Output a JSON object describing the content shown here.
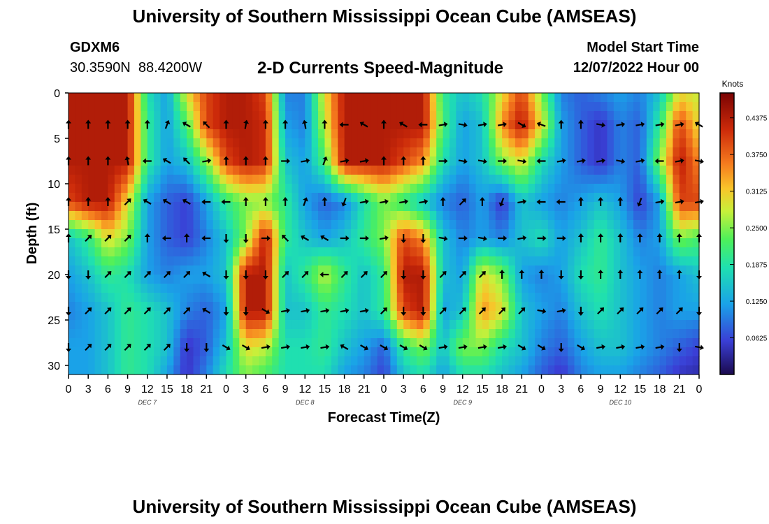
{
  "header": {
    "title": "University of Southern Mississippi Ocean Cube (AMSEAS)",
    "station_id": "GDXM6",
    "station_coords": "30.3590N  88.4200W",
    "product_title": "2-D Currents Speed-Magnitude",
    "model_start_label": "Model Start Time",
    "model_start_value": "12/07/2022 Hour 00"
  },
  "footer": {
    "title": "University of Southern Mississippi Ocean Cube (AMSEAS)"
  },
  "colors": {
    "low": "#2a0f6b",
    "mid": "#29e07c",
    "high": "#8b0000"
  },
  "chart_data": {
    "type": "heatmap",
    "title": "2-D Currents Speed-Magnitude",
    "xlabel": "Forecast Time(Z)",
    "ylabel": "Depth (ft)",
    "x_tick_labels": [
      "0",
      "3",
      "6",
      "9",
      "12",
      "15",
      "18",
      "21",
      "0",
      "3",
      "6",
      "9",
      "12",
      "15",
      "18",
      "21",
      "0",
      "3",
      "6",
      "9",
      "12",
      "15",
      "18",
      "21",
      "0",
      "3",
      "6",
      "9",
      "12",
      "15",
      "18",
      "21",
      "0"
    ],
    "y_ticks": [
      0,
      5,
      10,
      15,
      20,
      25,
      30
    ],
    "ylim": [
      0,
      31
    ],
    "x_hours_range": [
      0,
      96
    ],
    "day_labels": [
      {
        "text": "DEC 7",
        "hour": 12
      },
      {
        "text": "DEC 8",
        "hour": 36
      },
      {
        "text": "DEC 9",
        "hour": 60
      },
      {
        "text": "DEC 10",
        "hour": 84
      }
    ],
    "colorbar": {
      "label": "Knots",
      "ticks": [
        "0.4375",
        "0.3750",
        "0.3125",
        "0.2500",
        "0.1875",
        "0.1250",
        "0.0625"
      ],
      "range": [
        0.0,
        0.48
      ]
    },
    "hours": [
      0,
      3,
      6,
      9,
      12,
      15,
      18,
      21,
      24,
      27,
      30,
      33,
      36,
      39,
      42,
      45,
      48,
      51,
      54,
      57,
      60,
      63,
      66,
      69,
      72,
      75,
      78,
      81,
      84,
      87,
      90,
      93,
      96
    ],
    "depths": [
      0,
      3.5,
      7.5,
      12,
      16,
      20,
      24,
      28,
      31
    ],
    "speed_knots": [
      [
        0.44,
        0.44,
        0.44,
        0.44,
        0.18,
        0.12,
        0.3,
        0.4,
        0.44,
        0.44,
        0.4,
        0.1,
        0.1,
        0.3,
        0.44,
        0.44,
        0.44,
        0.44,
        0.44,
        0.2,
        0.15,
        0.18,
        0.3,
        0.4,
        0.25,
        0.1,
        0.08,
        0.1,
        0.12,
        0.1,
        0.15,
        0.3,
        0.28
      ],
      [
        0.44,
        0.44,
        0.44,
        0.44,
        0.2,
        0.12,
        0.22,
        0.4,
        0.44,
        0.44,
        0.42,
        0.12,
        0.1,
        0.28,
        0.44,
        0.44,
        0.44,
        0.44,
        0.44,
        0.22,
        0.12,
        0.15,
        0.35,
        0.44,
        0.3,
        0.12,
        0.08,
        0.05,
        0.1,
        0.08,
        0.2,
        0.4,
        0.3
      ],
      [
        0.44,
        0.44,
        0.44,
        0.44,
        0.2,
        0.12,
        0.15,
        0.25,
        0.4,
        0.44,
        0.42,
        0.15,
        0.12,
        0.22,
        0.44,
        0.44,
        0.44,
        0.4,
        0.35,
        0.18,
        0.12,
        0.15,
        0.25,
        0.3,
        0.18,
        0.12,
        0.08,
        0.05,
        0.1,
        0.08,
        0.25,
        0.44,
        0.35
      ],
      [
        0.4,
        0.44,
        0.44,
        0.3,
        0.12,
        0.08,
        0.06,
        0.12,
        0.2,
        0.25,
        0.25,
        0.2,
        0.12,
        0.08,
        0.1,
        0.18,
        0.25,
        0.2,
        0.15,
        0.1,
        0.08,
        0.12,
        0.05,
        0.15,
        0.12,
        0.1,
        0.12,
        0.15,
        0.12,
        0.06,
        0.12,
        0.4,
        0.4
      ],
      [
        0.15,
        0.2,
        0.3,
        0.25,
        0.12,
        0.08,
        0.06,
        0.1,
        0.15,
        0.25,
        0.44,
        0.2,
        0.15,
        0.12,
        0.15,
        0.2,
        0.25,
        0.4,
        0.35,
        0.15,
        0.1,
        0.12,
        0.1,
        0.15,
        0.18,
        0.12,
        0.15,
        0.2,
        0.15,
        0.1,
        0.12,
        0.25,
        0.22
      ],
      [
        0.12,
        0.15,
        0.2,
        0.18,
        0.12,
        0.1,
        0.12,
        0.12,
        0.15,
        0.44,
        0.44,
        0.15,
        0.2,
        0.28,
        0.2,
        0.15,
        0.2,
        0.44,
        0.44,
        0.15,
        0.12,
        0.3,
        0.25,
        0.12,
        0.1,
        0.12,
        0.18,
        0.2,
        0.15,
        0.12,
        0.1,
        0.12,
        0.15
      ],
      [
        0.1,
        0.12,
        0.15,
        0.2,
        0.18,
        0.15,
        0.1,
        0.08,
        0.12,
        0.44,
        0.44,
        0.15,
        0.15,
        0.2,
        0.18,
        0.15,
        0.2,
        0.4,
        0.44,
        0.12,
        0.15,
        0.35,
        0.3,
        0.15,
        0.12,
        0.1,
        0.15,
        0.18,
        0.15,
        0.12,
        0.1,
        0.12,
        0.12
      ],
      [
        0.12,
        0.12,
        0.15,
        0.2,
        0.18,
        0.15,
        0.05,
        0.08,
        0.15,
        0.3,
        0.28,
        0.18,
        0.18,
        0.2,
        0.15,
        0.12,
        0.08,
        0.2,
        0.25,
        0.15,
        0.25,
        0.25,
        0.18,
        0.15,
        0.1,
        0.08,
        0.12,
        0.15,
        0.15,
        0.12,
        0.1,
        0.08,
        0.06
      ],
      [
        0.12,
        0.12,
        0.15,
        0.2,
        0.18,
        0.12,
        0.05,
        0.1,
        0.18,
        0.25,
        0.22,
        0.18,
        0.18,
        0.18,
        0.12,
        0.1,
        0.06,
        0.15,
        0.18,
        0.12,
        0.18,
        0.18,
        0.15,
        0.12,
        0.08,
        0.05,
        0.1,
        0.12,
        0.12,
        0.1,
        0.08,
        0.05,
        0.04
      ]
    ],
    "arrow_depths": [
      3.5,
      7.5,
      12,
      16,
      20,
      24,
      28
    ],
    "arrow_hours": [
      0,
      3,
      6,
      9,
      12,
      15,
      18,
      21,
      24,
      27,
      30,
      33,
      36,
      39,
      42,
      45,
      48,
      51,
      54,
      57,
      60,
      63,
      66,
      69,
      72,
      75,
      78,
      81,
      84,
      87,
      90,
      93,
      96
    ],
    "arrow_directions_deg": [
      [
        0,
        0,
        0,
        0,
        0,
        20,
        300,
        315,
        0,
        10,
        0,
        0,
        350,
        0,
        270,
        300,
        0,
        300,
        270,
        80,
        100,
        80,
        80,
        120,
        290,
        0,
        0,
        100,
        80,
        80,
        80,
        80,
        300
      ],
      [
        0,
        0,
        0,
        350,
        270,
        300,
        315,
        80,
        0,
        0,
        0,
        90,
        80,
        20,
        80,
        80,
        0,
        0,
        0,
        90,
        100,
        100,
        90,
        100,
        270,
        80,
        80,
        80,
        100,
        80,
        270,
        80,
        100
      ],
      [
        0,
        0,
        0,
        45,
        300,
        300,
        300,
        270,
        270,
        0,
        0,
        0,
        20,
        0,
        200,
        80,
        80,
        80,
        80,
        0,
        45,
        0,
        200,
        80,
        270,
        270,
        0,
        0,
        0,
        200,
        80,
        80,
        80
      ],
      [
        0,
        45,
        45,
        45,
        0,
        270,
        0,
        270,
        180,
        180,
        90,
        315,
        300,
        300,
        90,
        90,
        80,
        180,
        180,
        100,
        90,
        100,
        90,
        80,
        90,
        90,
        0,
        0,
        0,
        0,
        0,
        0,
        0
      ],
      [
        180,
        180,
        45,
        45,
        45,
        45,
        45,
        300,
        180,
        180,
        180,
        45,
        45,
        270,
        45,
        45,
        45,
        180,
        180,
        45,
        45,
        45,
        0,
        0,
        0,
        180,
        180,
        0,
        0,
        0,
        0,
        0,
        180
      ],
      [
        180,
        45,
        45,
        45,
        45,
        45,
        45,
        300,
        180,
        180,
        120,
        80,
        80,
        80,
        80,
        80,
        45,
        180,
        180,
        45,
        45,
        45,
        45,
        45,
        100,
        80,
        180,
        45,
        45,
        45,
        45,
        45,
        180
      ],
      [
        180,
        45,
        45,
        45,
        45,
        45,
        180,
        180,
        120,
        120,
        80,
        80,
        80,
        80,
        300,
        120,
        120,
        120,
        120,
        80,
        80,
        80,
        80,
        120,
        120,
        180,
        120,
        80,
        80,
        80,
        80,
        180,
        100
      ]
    ]
  }
}
